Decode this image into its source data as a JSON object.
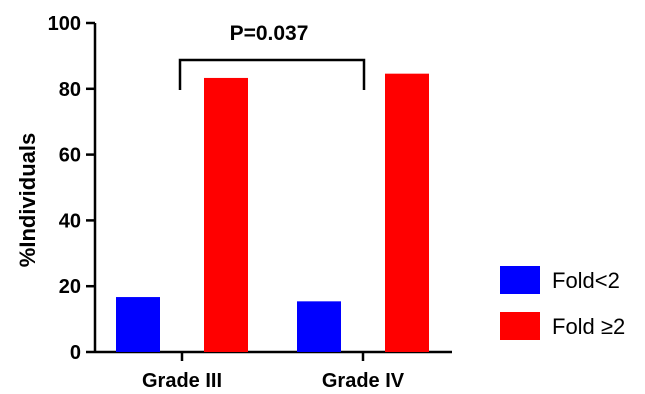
{
  "chart_data": {
    "type": "bar",
    "categories": [
      "Grade III",
      "Grade IV"
    ],
    "series": [
      {
        "name": "Fold<2",
        "values": [
          16.7,
          15.4
        ],
        "color": "#0000FF"
      },
      {
        "name": "Fold ≥2",
        "values": [
          83.3,
          84.6
        ],
        "color": "#FF0000"
      }
    ],
    "ylabel": "%Individuals",
    "xlabel": "",
    "ylim": [
      0,
      100
    ],
    "yticks": [
      0,
      20,
      40,
      60,
      80,
      100
    ],
    "annotation": "P=0.037",
    "legend_position": "right",
    "grid": false
  }
}
